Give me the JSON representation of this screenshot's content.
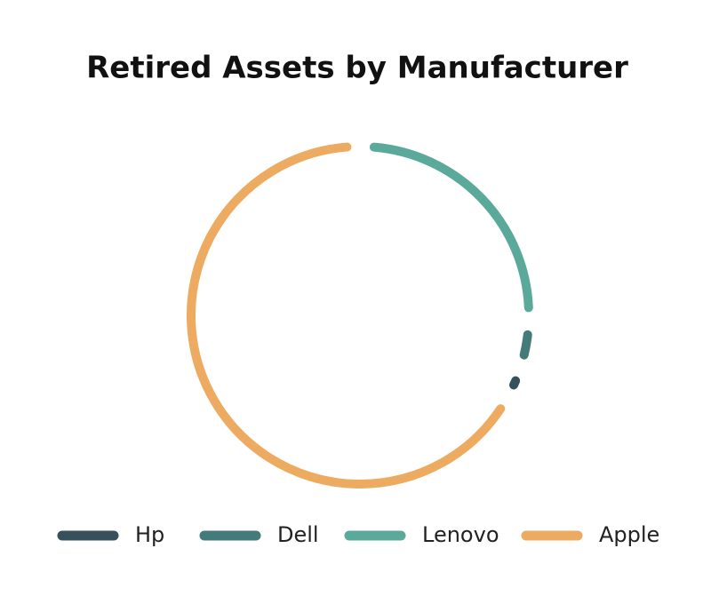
{
  "chart_data": {
    "type": "ring",
    "title": "Retired Assets by Manufacturer",
    "categories": [
      "Hp",
      "Dell",
      "Lenovo",
      "Apple"
    ],
    "values": [
      3,
      4.5,
      25.5,
      67
    ],
    "colors": [
      "#36505c",
      "#427b79",
      "#5ba99b",
      "#ecab60"
    ]
  }
}
